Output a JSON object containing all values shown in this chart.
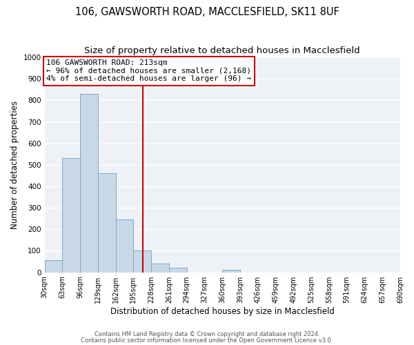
{
  "title": "106, GAWSWORTH ROAD, MACCLESFIELD, SK11 8UF",
  "subtitle": "Size of property relative to detached houses in Macclesfield",
  "xlabel": "Distribution of detached houses by size in Macclesfield",
  "ylabel": "Number of detached properties",
  "bar_values": [
    55,
    530,
    830,
    460,
    245,
    100,
    40,
    20,
    0,
    0,
    10,
    0,
    0,
    0,
    0,
    0,
    0,
    0,
    0,
    0
  ],
  "bin_edges": [
    30,
    63,
    96,
    129,
    162,
    195,
    228,
    261,
    294,
    327,
    360,
    393,
    426,
    459,
    492,
    525,
    558,
    591,
    624,
    657,
    690
  ],
  "tick_labels": [
    "30sqm",
    "63sqm",
    "96sqm",
    "129sqm",
    "162sqm",
    "195sqm",
    "228sqm",
    "261sqm",
    "294sqm",
    "327sqm",
    "360sqm",
    "393sqm",
    "426sqm",
    "459sqm",
    "492sqm",
    "525sqm",
    "558sqm",
    "591sqm",
    "624sqm",
    "657sqm",
    "690sqm"
  ],
  "bar_color": "#c8d8e8",
  "bar_edge_color": "#7aaac8",
  "vline_x": 213,
  "vline_color": "#cc0000",
  "annotation_title": "106 GAWSWORTH ROAD: 213sqm",
  "annotation_line1": "← 96% of detached houses are smaller (2,168)",
  "annotation_line2": "4% of semi-detached houses are larger (96) →",
  "annotation_box_color": "#cc0000",
  "annotation_bg": "#ffffff",
  "ylim": [
    0,
    1000
  ],
  "yticks": [
    0,
    100,
    200,
    300,
    400,
    500,
    600,
    700,
    800,
    900,
    1000
  ],
  "footer1": "Contains HM Land Registry data © Crown copyright and database right 2024.",
  "footer2": "Contains public sector information licensed under the Open Government Licence v3.0.",
  "bg_color": "#ffffff",
  "plot_bg_color": "#eef2f7",
  "title_fontsize": 10.5,
  "subtitle_fontsize": 9.5,
  "axis_label_fontsize": 8.5,
  "tick_fontsize": 7,
  "footer_fontsize": 6,
  "ann_fontsize": 8
}
